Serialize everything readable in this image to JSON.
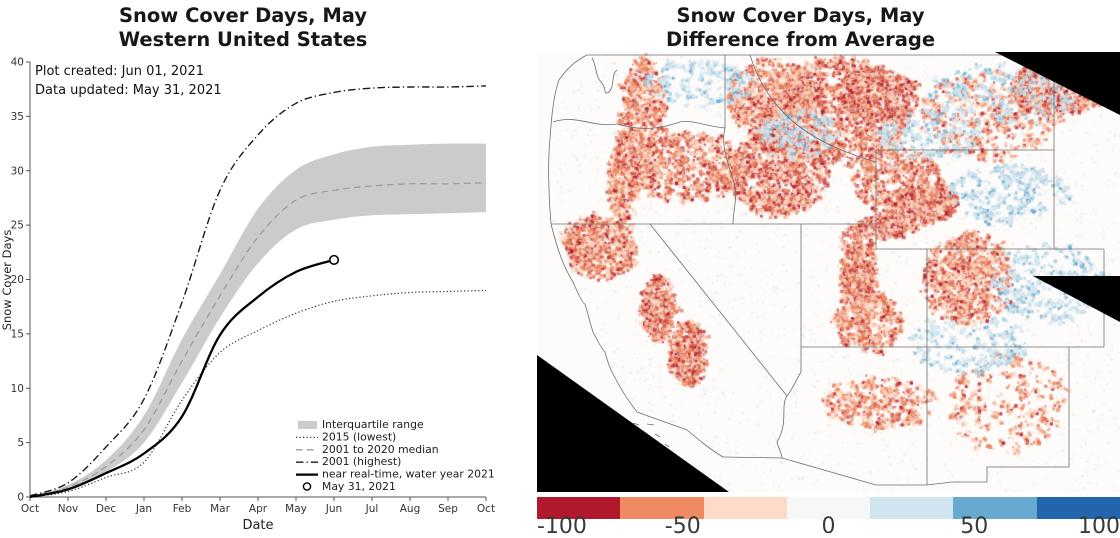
{
  "left_chart": {
    "title_line1": "Snow Cover Days, May",
    "title_line2": "Western United States",
    "annotation_line1": "Plot created: Jun 01, 2021",
    "annotation_line2": "Data updated: May 31, 2021",
    "xlabel": "Date",
    "ylabel": "Snow Cover Days",
    "chart_data": {
      "type": "line",
      "x_categories": [
        "Oct",
        "Nov",
        "Dec",
        "Jan",
        "Feb",
        "Mar",
        "Apr",
        "May",
        "Jun",
        "Jul",
        "Aug",
        "Sep",
        "Oct"
      ],
      "ylim": [
        0,
        40
      ],
      "yticks": [
        0,
        5,
        10,
        15,
        20,
        25,
        30,
        35,
        40
      ],
      "grid": false,
      "legend_position": "lower right",
      "band": {
        "name": "Interquartile range",
        "color": "#cbcbcb",
        "upper": [
          0.1,
          1.1,
          3.4,
          7.5,
          14.5,
          20.5,
          26.5,
          30.1,
          31.5,
          32.2,
          32.4,
          32.5,
          32.5
        ],
        "lower": [
          0.0,
          0.7,
          2.3,
          5.0,
          10.5,
          16.5,
          21.5,
          24.6,
          25.5,
          25.9,
          26.0,
          26.1,
          26.2
        ]
      },
      "series": [
        {
          "name": "2015 (lowest)",
          "style": "dotted",
          "color": "#3a3a3a",
          "values": [
            0,
            0.5,
            1.8,
            3.2,
            8.9,
            13.3,
            15.3,
            16.9,
            18.0,
            18.5,
            18.8,
            18.9,
            19.0
          ]
        },
        {
          "name": "2001 to 2020 median",
          "style": "dashed",
          "color": "#999999",
          "values": [
            0,
            0.9,
            2.8,
            6.2,
            12.5,
            18.5,
            23.9,
            27.3,
            28.2,
            28.6,
            28.8,
            28.8,
            28.9
          ]
        },
        {
          "name": "2001 (highest)",
          "style": "dashdot",
          "color": "#1a1a1a",
          "values": [
            0.1,
            1.3,
            4.6,
            9.0,
            17.9,
            28.2,
            33.3,
            36.2,
            37.2,
            37.6,
            37.7,
            37.7,
            37.8
          ]
        },
        {
          "name": "near real-time, water year 2021",
          "style": "solid",
          "color": "#000000",
          "values": [
            0,
            0.7,
            2.2,
            4.0,
            7.4,
            14.9,
            18.4,
            20.7,
            21.8
          ]
        }
      ],
      "marker": {
        "label": "May 31, 2021",
        "x_category": "Jun",
        "value": 21.8
      }
    }
  },
  "right_map": {
    "title_line1": "Snow Cover Days, May",
    "title_line2": "Difference from Average",
    "nodata_color": "#000000",
    "border_color": "#6e6e6e",
    "colorbar": {
      "vmin": -100,
      "vmax": 100,
      "ticks": [
        "-100",
        "-50",
        "0",
        "50",
        "100"
      ],
      "palette": [
        "#b2182b",
        "#ef8a62",
        "#fddbc7",
        "#f7f7f7",
        "#d1e5f0",
        "#67a9cf",
        "#2166ac"
      ]
    }
  }
}
